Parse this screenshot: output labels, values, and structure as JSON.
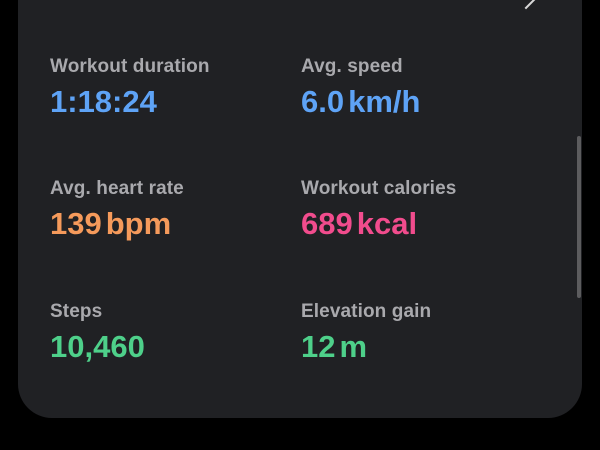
{
  "colors": {
    "card_background": "#202124",
    "label": "#a9a9ad",
    "blue": "#5ea3f6",
    "orange": "#f59a5b",
    "pink": "#f14c8d",
    "green": "#4ed08a"
  },
  "icons": {
    "top_right": "chevron-right-icon"
  },
  "metrics": {
    "duration": {
      "label": "Workout duration",
      "value": "1:18:24"
    },
    "speed": {
      "label": "Avg. speed",
      "value": "6.0",
      "unit": "km/h"
    },
    "heart_rate": {
      "label": "Avg. heart rate",
      "value": "139",
      "unit": "bpm"
    },
    "calories": {
      "label": "Workout calories",
      "value": "689",
      "unit": "kcal"
    },
    "steps": {
      "label": "Steps",
      "value": "10,460"
    },
    "elevation": {
      "label": "Elevation gain",
      "value": "12",
      "unit": "m"
    }
  }
}
